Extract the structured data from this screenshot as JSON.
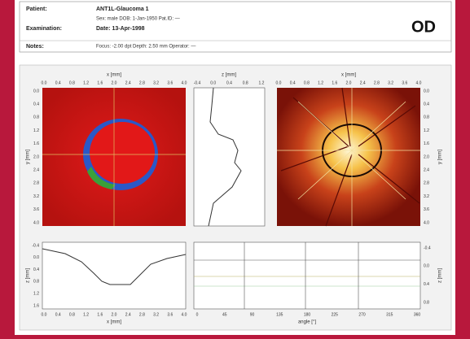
{
  "header": {
    "patient": {
      "label": "Patient:",
      "value": "ANT1L-Glaucoma 1",
      "detail": "Sex: male   DOB: 1-Jan-1950   Pat.ID: —"
    },
    "examination": {
      "label": "Examination:",
      "value": "Date: 13-Apr-1998"
    },
    "notes": {
      "label": "Notes:",
      "value": "Focus: -2.00 dpt   Depth: 2.50 mm   Operator: —"
    },
    "eye": "OD"
  },
  "topography": {
    "x_label": "x [mm]",
    "y_label": "y [mm]",
    "x_ticks": [
      "0.0",
      "0.4",
      "0.8",
      "1.2",
      "1.6",
      "2.0",
      "2.4",
      "2.8",
      "3.2",
      "3.6",
      "4.0"
    ],
    "y_ticks": [
      "0.0",
      "0.4",
      "0.8",
      "1.2",
      "1.6",
      "2.0",
      "2.4",
      "2.8",
      "3.2",
      "3.6",
      "4.0"
    ]
  },
  "vertical_profile": {
    "x_label": "z [mm]",
    "x_ticks": [
      "-0.4",
      "0.0",
      "0.4",
      "0.8",
      "1.2"
    ]
  },
  "reflectance": {
    "x_label": "x [mm]",
    "y_label": "y [mm]",
    "x_ticks": [
      "0.0",
      "0.4",
      "0.8",
      "1.2",
      "1.6",
      "2.0",
      "2.4",
      "2.8",
      "3.2",
      "3.6",
      "4.0"
    ],
    "y_ticks": [
      "0.0",
      "0.4",
      "0.8",
      "1.2",
      "1.6",
      "2.0",
      "2.4",
      "2.8",
      "3.2",
      "3.6",
      "4.0"
    ]
  },
  "horizontal_profile": {
    "x_label": "x [mm]",
    "y_label": "z [mm]",
    "x_ticks": [
      "0.0",
      "0.4",
      "0.8",
      "1.2",
      "1.6",
      "2.0",
      "2.4",
      "2.8",
      "3.2",
      "3.6",
      "4.0"
    ],
    "y_ticks": [
      "-0.4",
      "0.0",
      "0.4",
      "0.8",
      "1.2",
      "1.6"
    ]
  },
  "contour": {
    "x_label": "angle [°]",
    "y_label": "z [mm]",
    "x_ticks": [
      "0",
      "45",
      "90",
      "135",
      "180",
      "225",
      "270",
      "315",
      "360"
    ],
    "y_ticks": [
      "-0.4",
      "0.0",
      "0.4",
      "0.8"
    ]
  }
}
